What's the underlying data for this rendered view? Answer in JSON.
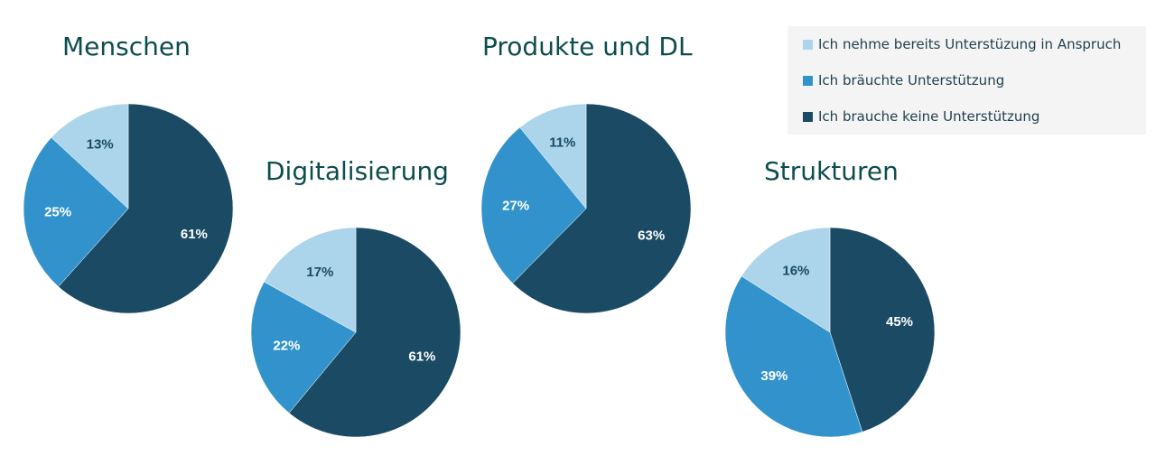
{
  "colors": {
    "title": "#0d4d4d",
    "legend_bg": "#f4f4f4",
    "legend_text": "#1f3f4f",
    "label_dark": "#1b4a64",
    "label_light": "#ffffff"
  },
  "legend": [
    {
      "label": "Ich nehme bereits Unterstüzung in Anspruch",
      "color": "#acd4ea"
    },
    {
      "label": "Ich bräuchte Unterstützung",
      "color": "#3293cc"
    },
    {
      "label": "Ich brauche keine Unterstützung",
      "color": "#1b4a64"
    }
  ],
  "chart_data": [
    {
      "type": "pie",
      "title": "Menschen",
      "slices": [
        {
          "name": "Ich brauche keine Unterstützung",
          "value": 61,
          "label": "61%",
          "color": "#1b4a64"
        },
        {
          "name": "Ich bräuchte Unterstützung",
          "value": 25,
          "label": "25%",
          "color": "#3293cc"
        },
        {
          "name": "Ich nehme bereits Unterstüzung in Anspruch",
          "value": 13,
          "label": "13%",
          "color": "#acd4ea"
        }
      ]
    },
    {
      "type": "pie",
      "title": "Digitalisierung",
      "slices": [
        {
          "name": "Ich brauche keine Unterstützung",
          "value": 61,
          "label": "61%",
          "color": "#1b4a64"
        },
        {
          "name": "Ich bräuchte Unterstützung",
          "value": 22,
          "label": "22%",
          "color": "#3293cc"
        },
        {
          "name": "Ich nehme bereits Unterstüzung in Anspruch",
          "value": 17,
          "label": "17%",
          "color": "#acd4ea"
        }
      ]
    },
    {
      "type": "pie",
      "title": "Produkte und DL",
      "slices": [
        {
          "name": "Ich brauche keine Unterstützung",
          "value": 63,
          "label": "63%",
          "color": "#1b4a64"
        },
        {
          "name": "Ich bräuchte Unterstützung",
          "value": 27,
          "label": "27%",
          "color": "#3293cc"
        },
        {
          "name": "Ich nehme bereits Unterstüzung in Anspruch",
          "value": 11,
          "label": "11%",
          "color": "#acd4ea"
        }
      ]
    },
    {
      "type": "pie",
      "title": "Strukturen",
      "slices": [
        {
          "name": "Ich brauche keine Unterstützung",
          "value": 45,
          "label": "45%",
          "color": "#1b4a64"
        },
        {
          "name": "Ich bräuchte Unterstützung",
          "value": 39,
          "label": "39%",
          "color": "#3293cc"
        },
        {
          "name": "Ich nehme bereits Unterstüzung in Anspruch",
          "value": 16,
          "label": "16%",
          "color": "#acd4ea"
        }
      ]
    }
  ]
}
